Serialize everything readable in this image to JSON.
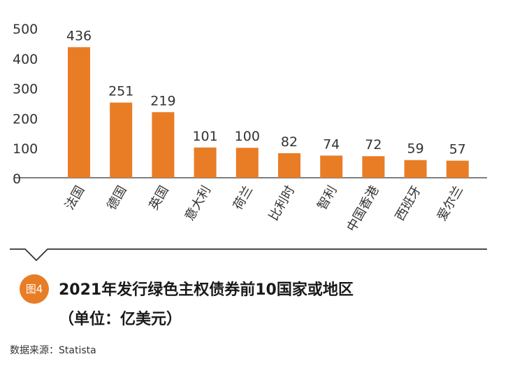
{
  "chart_data": {
    "type": "bar",
    "categories": [
      "法国",
      "德国",
      "英国",
      "意大利",
      "荷兰",
      "比利时",
      "智利",
      "中国香港",
      "西班牙",
      "爱尔兰"
    ],
    "values": [
      436,
      251,
      219,
      101,
      100,
      82,
      74,
      72,
      59,
      57
    ],
    "yticks": [
      0,
      100,
      200,
      300,
      400,
      500
    ],
    "ylim": [
      0,
      500
    ],
    "grid": false,
    "bar_color": "#e87d26",
    "data_labels": true
  },
  "figure": {
    "badge": "图4",
    "title": "2021年发行绿色主权债券前10国家或地区",
    "subtitle": "（单位：亿美元）",
    "source": "数据来源：Statista"
  }
}
